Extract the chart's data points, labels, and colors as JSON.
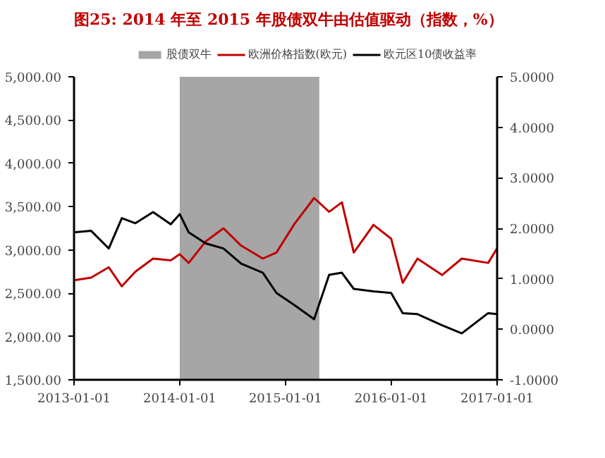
{
  "chart_data": {
    "type": "line",
    "title": "图25:  2014 年至 2015 年股债双牛由估值驱动（指数，%）",
    "x": [
      "2013-01-01",
      "2013-03-01",
      "2013-05-01",
      "2013-06-15",
      "2013-08-01",
      "2013-10-01",
      "2013-12-01",
      "2014-01-01",
      "2014-02-01",
      "2014-04-01",
      "2014-06-01",
      "2014-08-01",
      "2014-10-15",
      "2014-12-01",
      "2015-02-01",
      "2015-04-10",
      "2015-06-01",
      "2015-07-15",
      "2015-08-25",
      "2015-11-01",
      "2016-01-01",
      "2016-02-10",
      "2016-04-01",
      "2016-06-25",
      "2016-09-01",
      "2016-12-01",
      "2017-01-01"
    ],
    "series": [
      {
        "name": "欧洲价格指数(欧元)",
        "color": "#c00000",
        "values": [
          2650,
          2680,
          2800,
          2580,
          2750,
          2900,
          2880,
          2950,
          2850,
          3100,
          3250,
          3050,
          2900,
          2970,
          3300,
          3600,
          3440,
          3550,
          2970,
          3290,
          3130,
          2620,
          2900,
          2710,
          2900,
          2850,
          3020
        ]
      },
      {
        "name": "欧元区10债收益率",
        "color": "#000000",
        "axis": "y2",
        "values": [
          1.92,
          1.95,
          1.6,
          2.2,
          2.1,
          2.32,
          2.08,
          2.28,
          1.92,
          1.7,
          1.6,
          1.3,
          1.12,
          0.72,
          0.48,
          0.2,
          1.08,
          1.12,
          0.8,
          0.75,
          0.72,
          0.32,
          0.3,
          0.08,
          -0.08,
          0.32,
          0.3
        ]
      }
    ],
    "bands": [
      {
        "axis": "x",
        "from": "2014-01-01",
        "to": "2015-04-28",
        "label": "股债双牛",
        "color": "#a6a6a6"
      }
    ],
    "xlim": [
      "2013-01-01",
      "2017-01-01"
    ],
    "xticks": [
      "2013-01-01",
      "2014-01-01",
      "2015-01-01",
      "2016-01-01",
      "2017-01-01"
    ],
    "ylim": [
      1500,
      5000
    ],
    "yticks": [
      {
        "value": 1500,
        "label": "1,500.00"
      },
      {
        "value": 2000,
        "label": "2,000.00"
      },
      {
        "value": 2500,
        "label": "2,500.00"
      },
      {
        "value": 3000,
        "label": "3,000.00"
      },
      {
        "value": 3500,
        "label": "3,500.00"
      },
      {
        "value": 4000,
        "label": "4,000.00"
      },
      {
        "value": 4500,
        "label": "4,500.00"
      },
      {
        "value": 5000,
        "label": "5,000.00"
      }
    ],
    "y2lim": [
      -1,
      5
    ],
    "y2ticks": [
      {
        "value": -1,
        "label": "-1.0000"
      },
      {
        "value": 0,
        "label": "0.0000"
      },
      {
        "value": 1,
        "label": "1.0000"
      },
      {
        "value": 2,
        "label": "2.0000"
      },
      {
        "value": 3,
        "label": "3.0000"
      },
      {
        "value": 4,
        "label": "4.0000"
      },
      {
        "value": 5,
        "label": "5.0000"
      }
    ],
    "legend": "top",
    "grid": false
  }
}
